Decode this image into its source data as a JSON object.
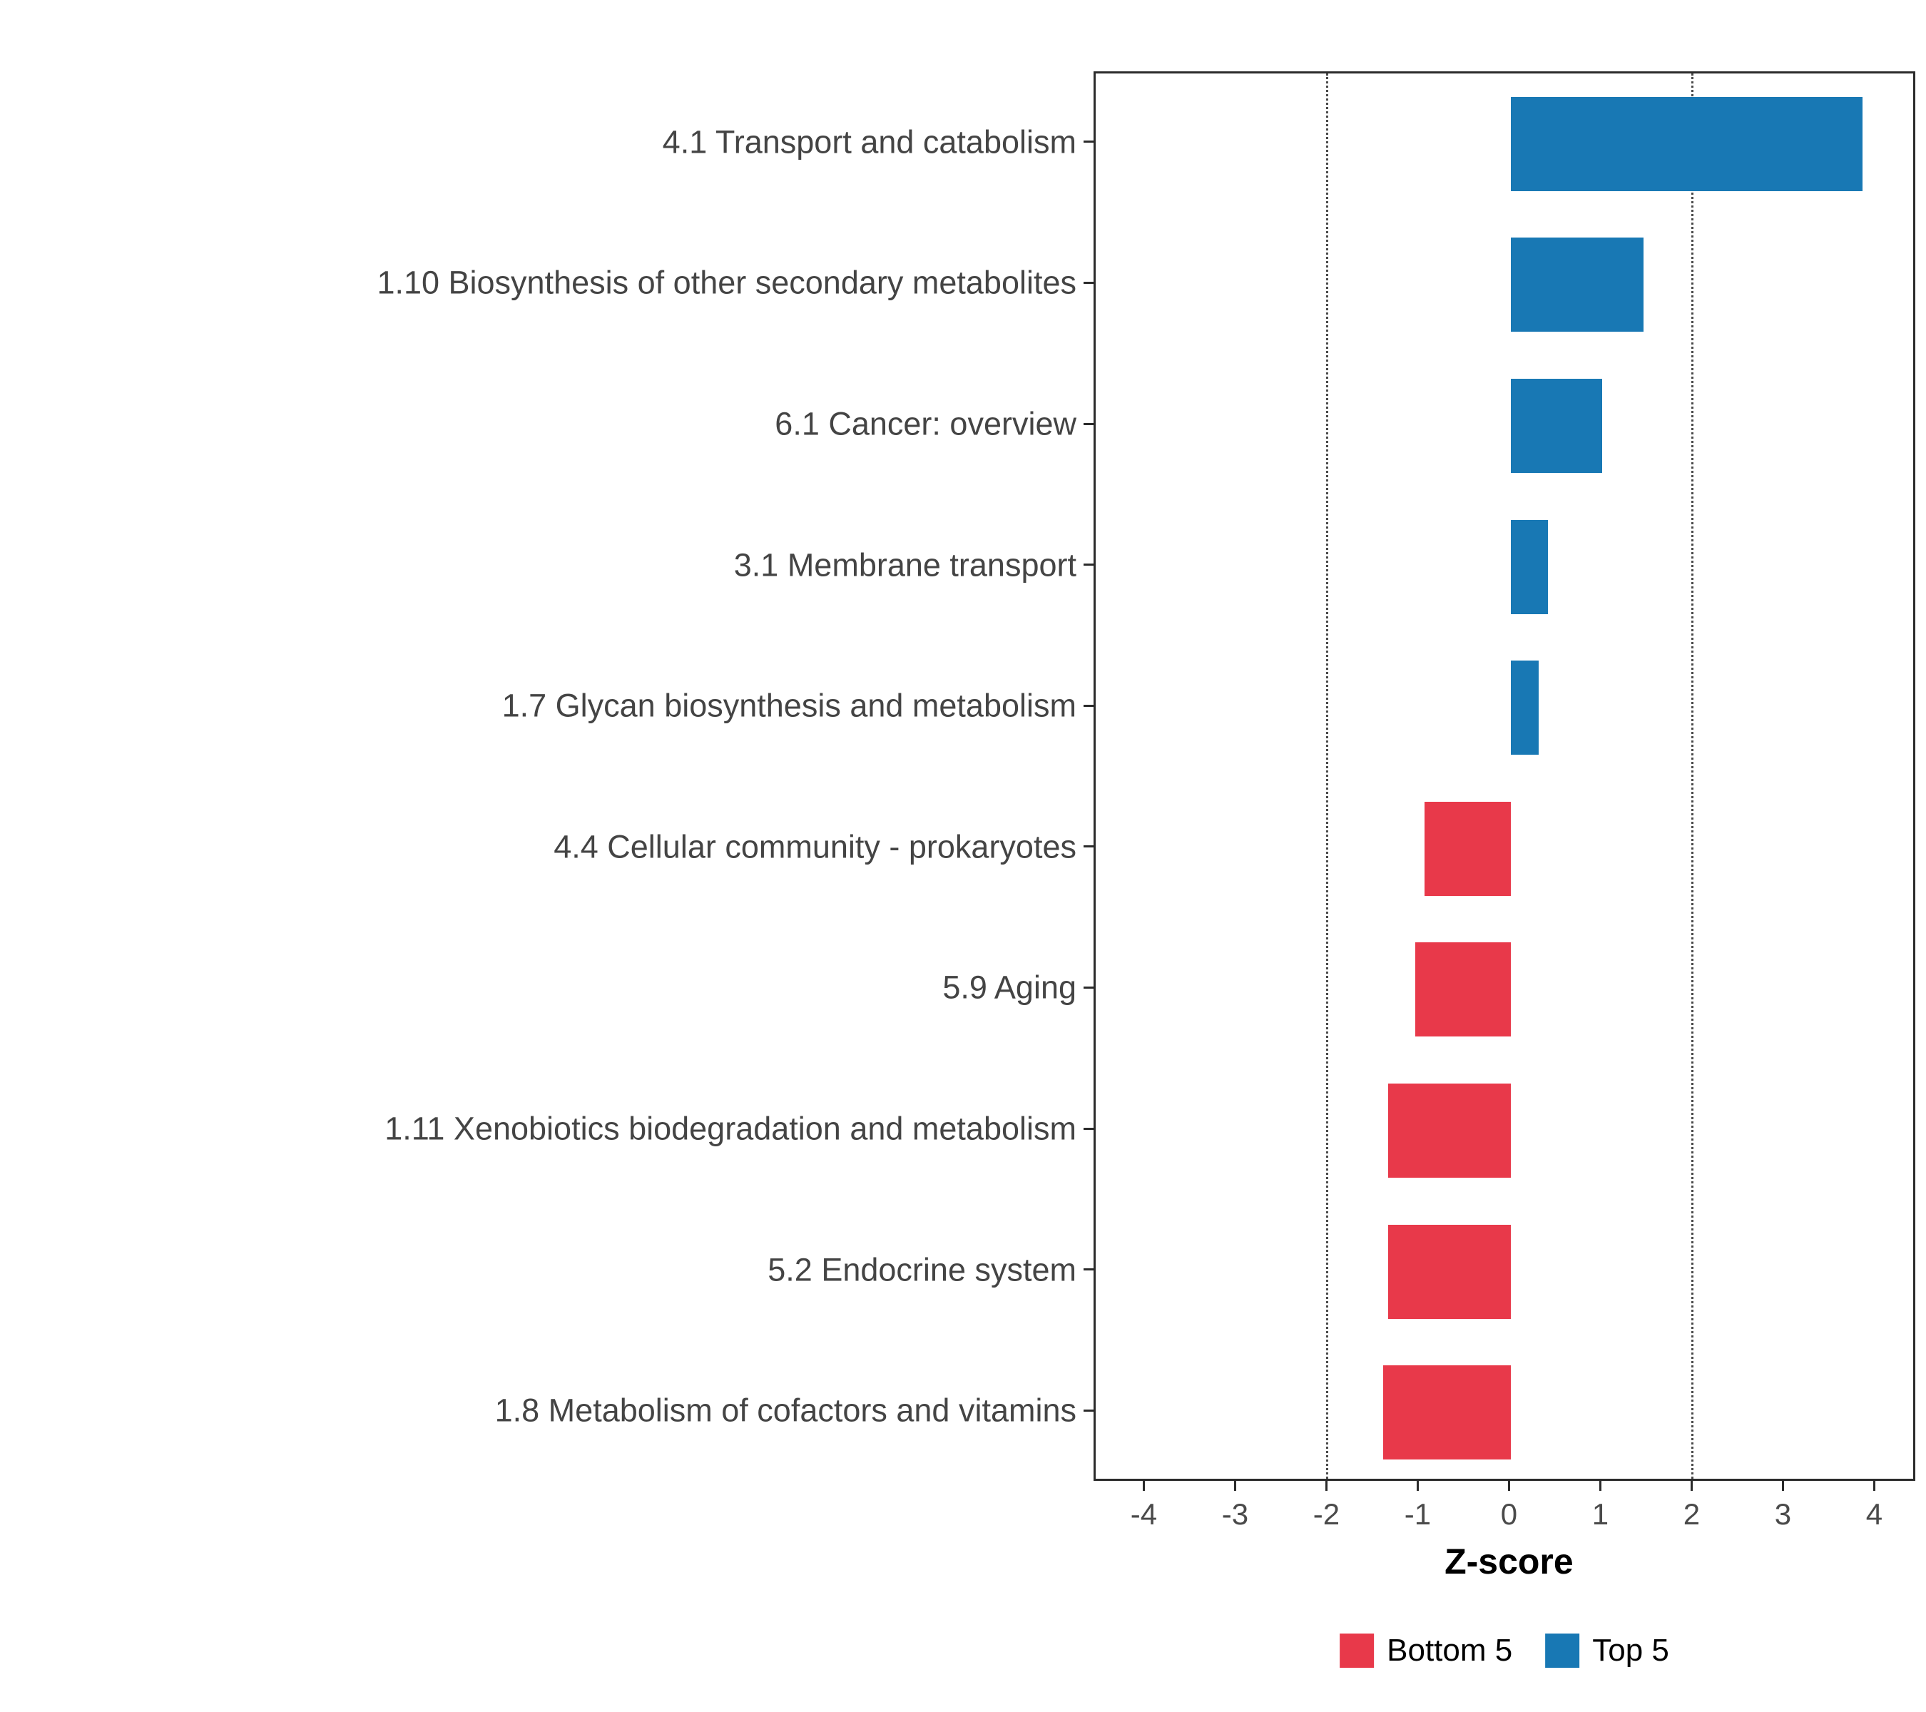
{
  "chart_data": {
    "type": "bar",
    "orientation": "horizontal",
    "title": "",
    "xlabel": "Z-score",
    "ylabel": "",
    "categories": [
      "4.1 Transport and catabolism",
      "1.10 Biosynthesis of other secondary metabolites",
      "6.1 Cancer: overview",
      "3.1 Membrane transport",
      "1.7 Glycan biosynthesis and metabolism",
      "4.4 Cellular community - prokaryotes",
      "5.9 Aging",
      "1.11 Xenobiotics biodegradation and metabolism",
      "5.2 Endocrine system",
      "1.8 Metabolism of cofactors and vitamins"
    ],
    "values": [
      3.85,
      1.45,
      1.0,
      0.4,
      0.3,
      -0.95,
      -1.05,
      -1.35,
      -1.35,
      -1.4
    ],
    "groups": [
      "Top 5",
      "Top 5",
      "Top 5",
      "Top 5",
      "Top 5",
      "Bottom 5",
      "Bottom 5",
      "Bottom 5",
      "Bottom 5",
      "Bottom 5"
    ],
    "series_colors": {
      "Top 5": "#1878b4",
      "Bottom 5": "#e8394a"
    },
    "x_ticks": [
      -4,
      -3,
      -2,
      -1,
      0,
      1,
      2,
      3,
      4
    ],
    "xlim": [
      -4.55,
      4.45
    ],
    "reference_lines": [
      -2,
      2
    ],
    "grid": "off",
    "legend_position": "bottom",
    "legend": [
      {
        "label": "Bottom 5",
        "color": "#e8394a"
      },
      {
        "label": "Top 5",
        "color": "#1878b4"
      }
    ]
  }
}
